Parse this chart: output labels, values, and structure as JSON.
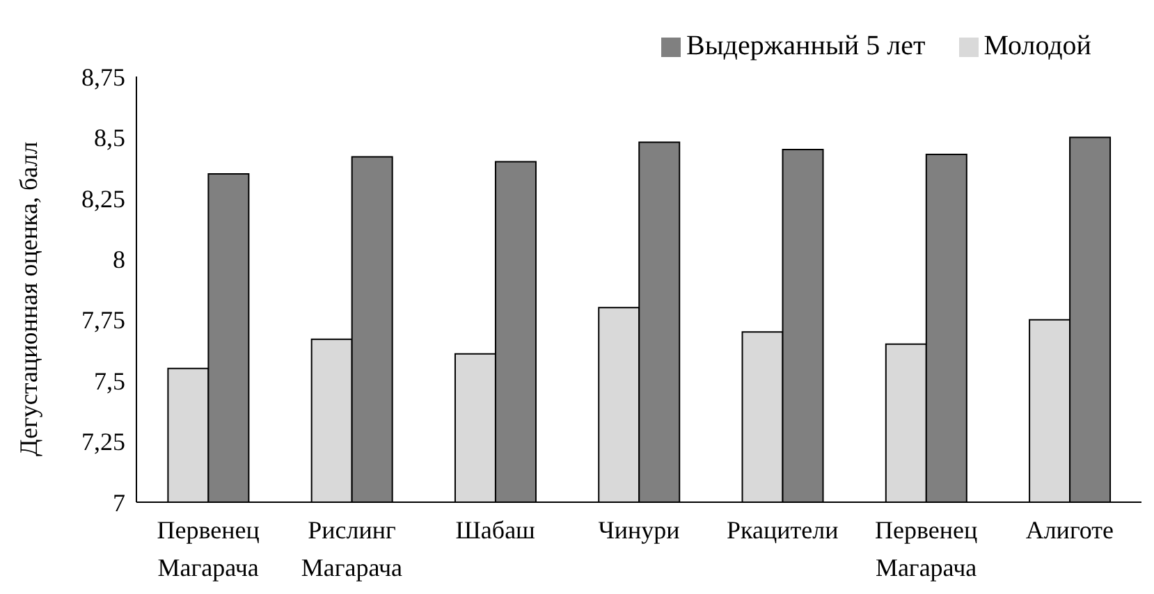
{
  "chart_data": {
    "type": "bar",
    "ylabel": "Дегустационная оценка, балл",
    "categories": [
      "Первенец Магарача",
      "Рислинг Магарача",
      "Шабаш",
      "Чинури",
      "Ркацители",
      "Первенец Магарача",
      "Алиготе"
    ],
    "series": [
      {
        "name": "Молодой",
        "color": "#d9d9d9",
        "values": [
          7.55,
          7.67,
          7.61,
          7.8,
          7.7,
          7.65,
          7.75
        ]
      },
      {
        "name": "Выдержанный 5 лет",
        "color": "#808080",
        "values": [
          8.35,
          8.42,
          8.4,
          8.48,
          8.45,
          8.43,
          8.5
        ]
      }
    ],
    "ylim": [
      7,
      8.75
    ],
    "yticks": [
      {
        "value": 7,
        "label": "7"
      },
      {
        "value": 7.25,
        "label": "7,25"
      },
      {
        "value": 7.5,
        "label": "7,5"
      },
      {
        "value": 7.75,
        "label": "7,75"
      },
      {
        "value": 8,
        "label": "8"
      },
      {
        "value": 8.25,
        "label": "8,25"
      },
      {
        "value": 8.5,
        "label": "8,5"
      },
      {
        "value": 8.75,
        "label": "8,75"
      }
    ],
    "grid": false,
    "legend": "top right"
  }
}
